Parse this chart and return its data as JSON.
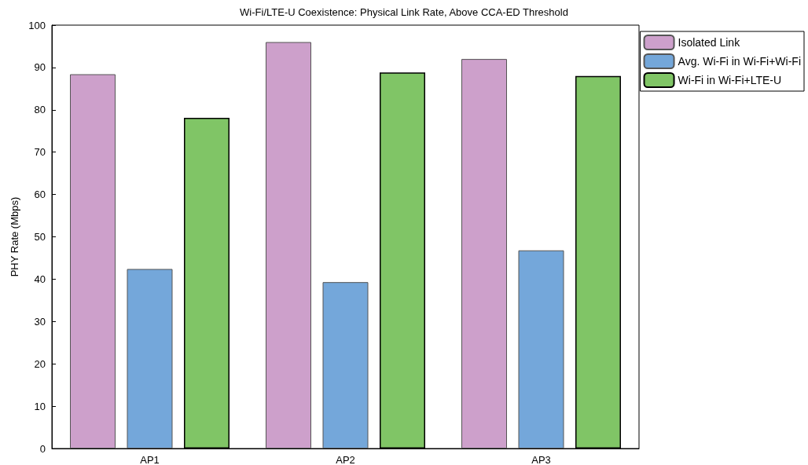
{
  "chart_data": {
    "type": "bar",
    "title": "Wi-Fi/LTE-U Coexistence: Physical Link Rate, Above CCA-ED Threshold",
    "ylabel": "PHY Rate (Mbps)",
    "categories": [
      "AP1",
      "AP2",
      "AP3"
    ],
    "series": [
      {
        "name": "Isolated Link",
        "color": "#cda0cb",
        "values": [
          88.4,
          96.0,
          92.0
        ]
      },
      {
        "name": "Avg. Wi-Fi in Wi-Fi+Wi-Fi",
        "color": "#74a7da",
        "values": [
          42.4,
          39.3,
          46.8
        ]
      },
      {
        "name": "Wi-Fi in Wi-Fi+LTE-U",
        "color": "#80c566",
        "values": [
          78.1,
          88.8,
          88
        ]
      }
    ],
    "ylim": [
      0,
      100
    ],
    "yticks": [
      0,
      10,
      20,
      30,
      40,
      50,
      60,
      70,
      80,
      90,
      100
    ],
    "grid": false,
    "legend": "top right"
  }
}
